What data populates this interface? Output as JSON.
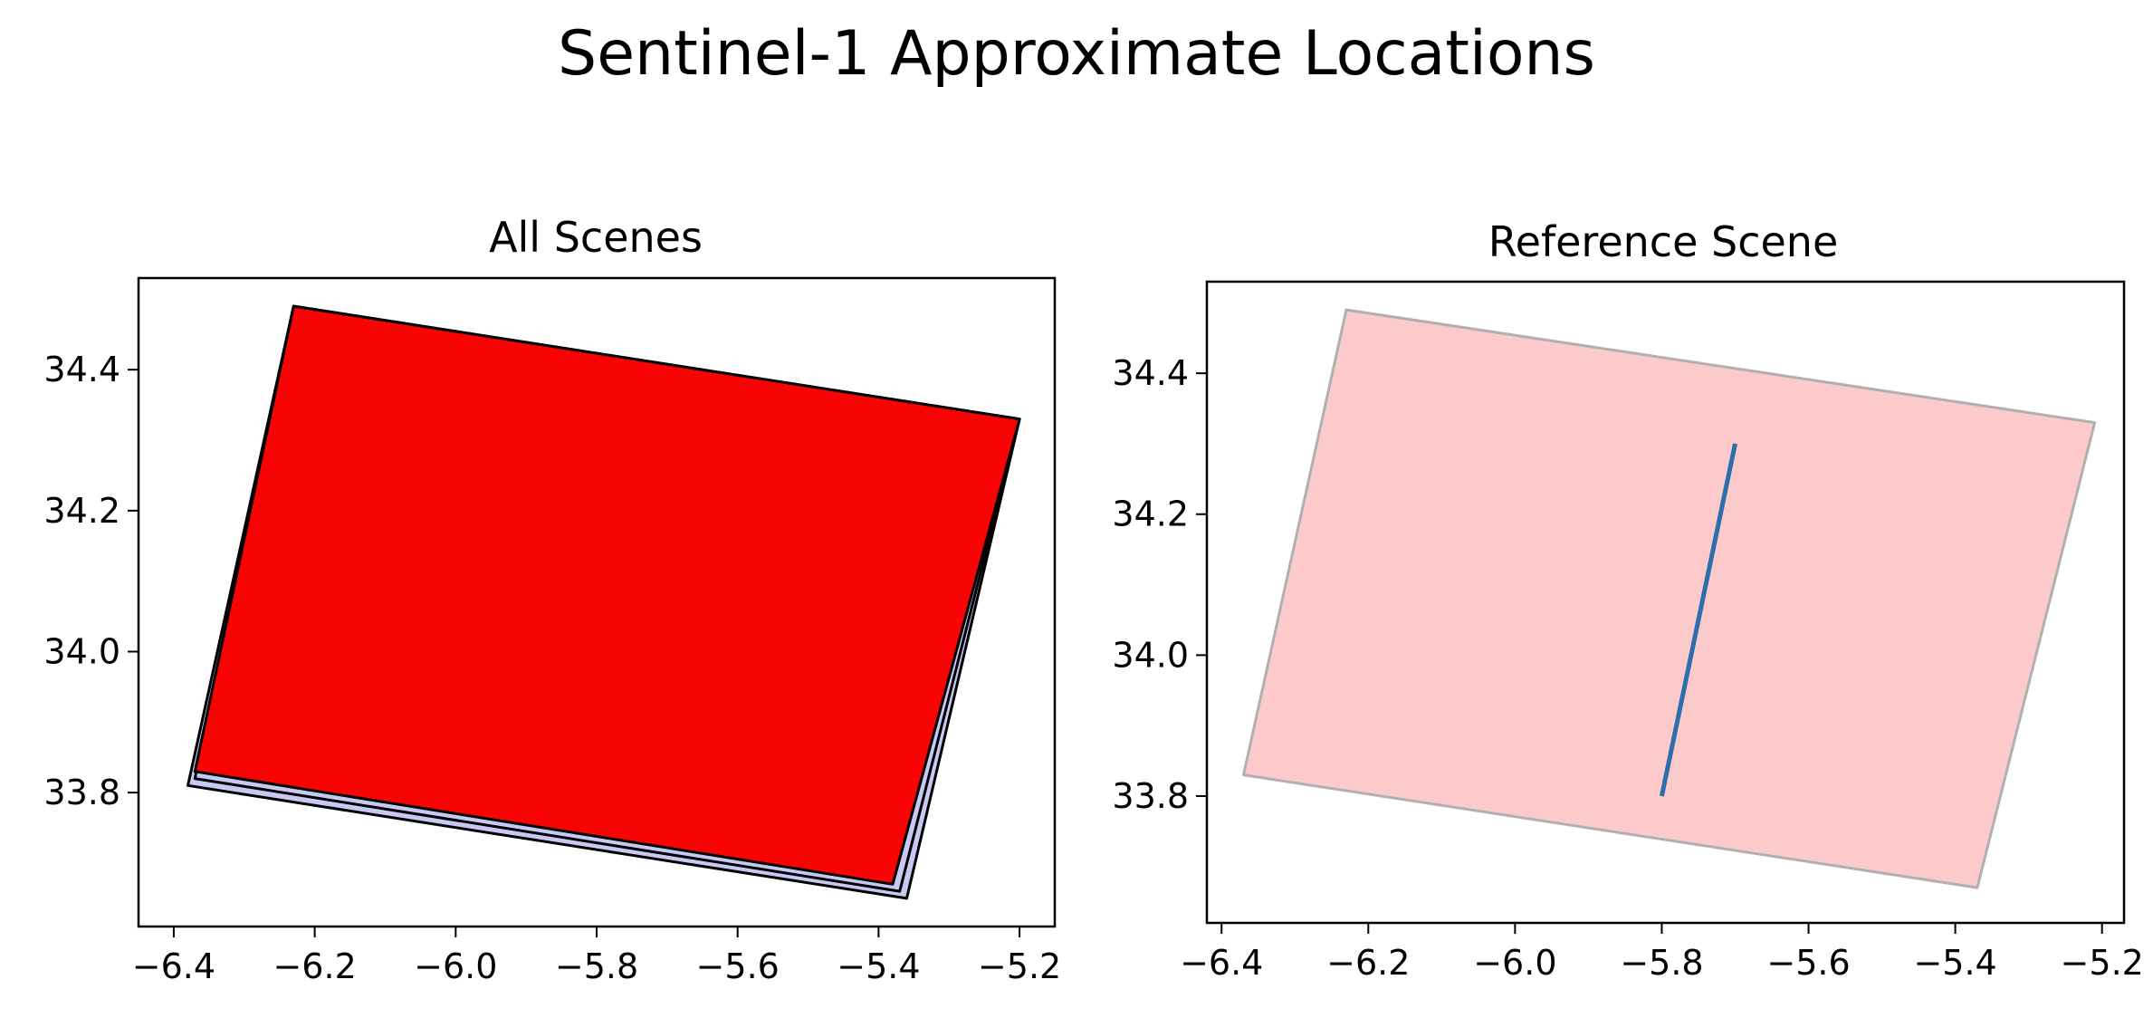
{
  "figure": {
    "title": "Sentinel-1 Approximate Locations"
  },
  "chart_data": [
    {
      "type": "area",
      "title": "All Scenes",
      "xlabel": "",
      "ylabel": "",
      "xlim": [
        -6.45,
        -5.15
      ],
      "ylim": [
        33.61,
        34.53
      ],
      "xticks": [
        -6.4,
        -6.2,
        -6.0,
        -5.8,
        -5.6,
        -5.4,
        -5.2
      ],
      "yticks": [
        33.8,
        34.0,
        34.2,
        34.4
      ],
      "grid": false,
      "polygons": [
        {
          "fill": "#c8c8f5",
          "stroke": "#000000",
          "points": [
            [
              -6.23,
              34.49
            ],
            [
              -5.2,
              34.33
            ],
            [
              -5.36,
              33.65
            ],
            [
              -6.38,
              33.81
            ]
          ]
        },
        {
          "fill": "#c8c8f5",
          "stroke": "#000000",
          "points": [
            [
              -6.23,
              34.49
            ],
            [
              -5.2,
              34.33
            ],
            [
              -5.37,
              33.66
            ],
            [
              -6.37,
              33.82
            ]
          ]
        },
        {
          "fill": "#f80404",
          "stroke": "#000000",
          "points": [
            [
              -6.23,
              34.49
            ],
            [
              -5.2,
              34.33
            ],
            [
              -5.38,
              33.67
            ],
            [
              -6.37,
              33.83
            ]
          ]
        }
      ]
    },
    {
      "type": "area",
      "title": "Reference Scene",
      "xlabel": "",
      "ylabel": "",
      "xlim": [
        -6.42,
        -5.17
      ],
      "ylim": [
        33.62,
        34.53
      ],
      "xticks": [
        -6.4,
        -6.2,
        -6.0,
        -5.8,
        -5.6,
        -5.4,
        -5.2
      ],
      "yticks": [
        33.8,
        34.0,
        34.2,
        34.4
      ],
      "grid": false,
      "polygons": [
        {
          "fill": "#fccaca",
          "stroke": "#b0b0b0",
          "points": [
            [
              -6.23,
              34.49
            ],
            [
              -5.21,
              34.33
            ],
            [
              -5.37,
              33.67
            ],
            [
              -6.37,
              33.83
            ]
          ]
        }
      ],
      "lines": [
        {
          "color": "#2c6fad",
          "points": [
            [
              -5.8,
              33.8
            ],
            [
              -5.7,
              34.3
            ]
          ]
        }
      ]
    }
  ]
}
